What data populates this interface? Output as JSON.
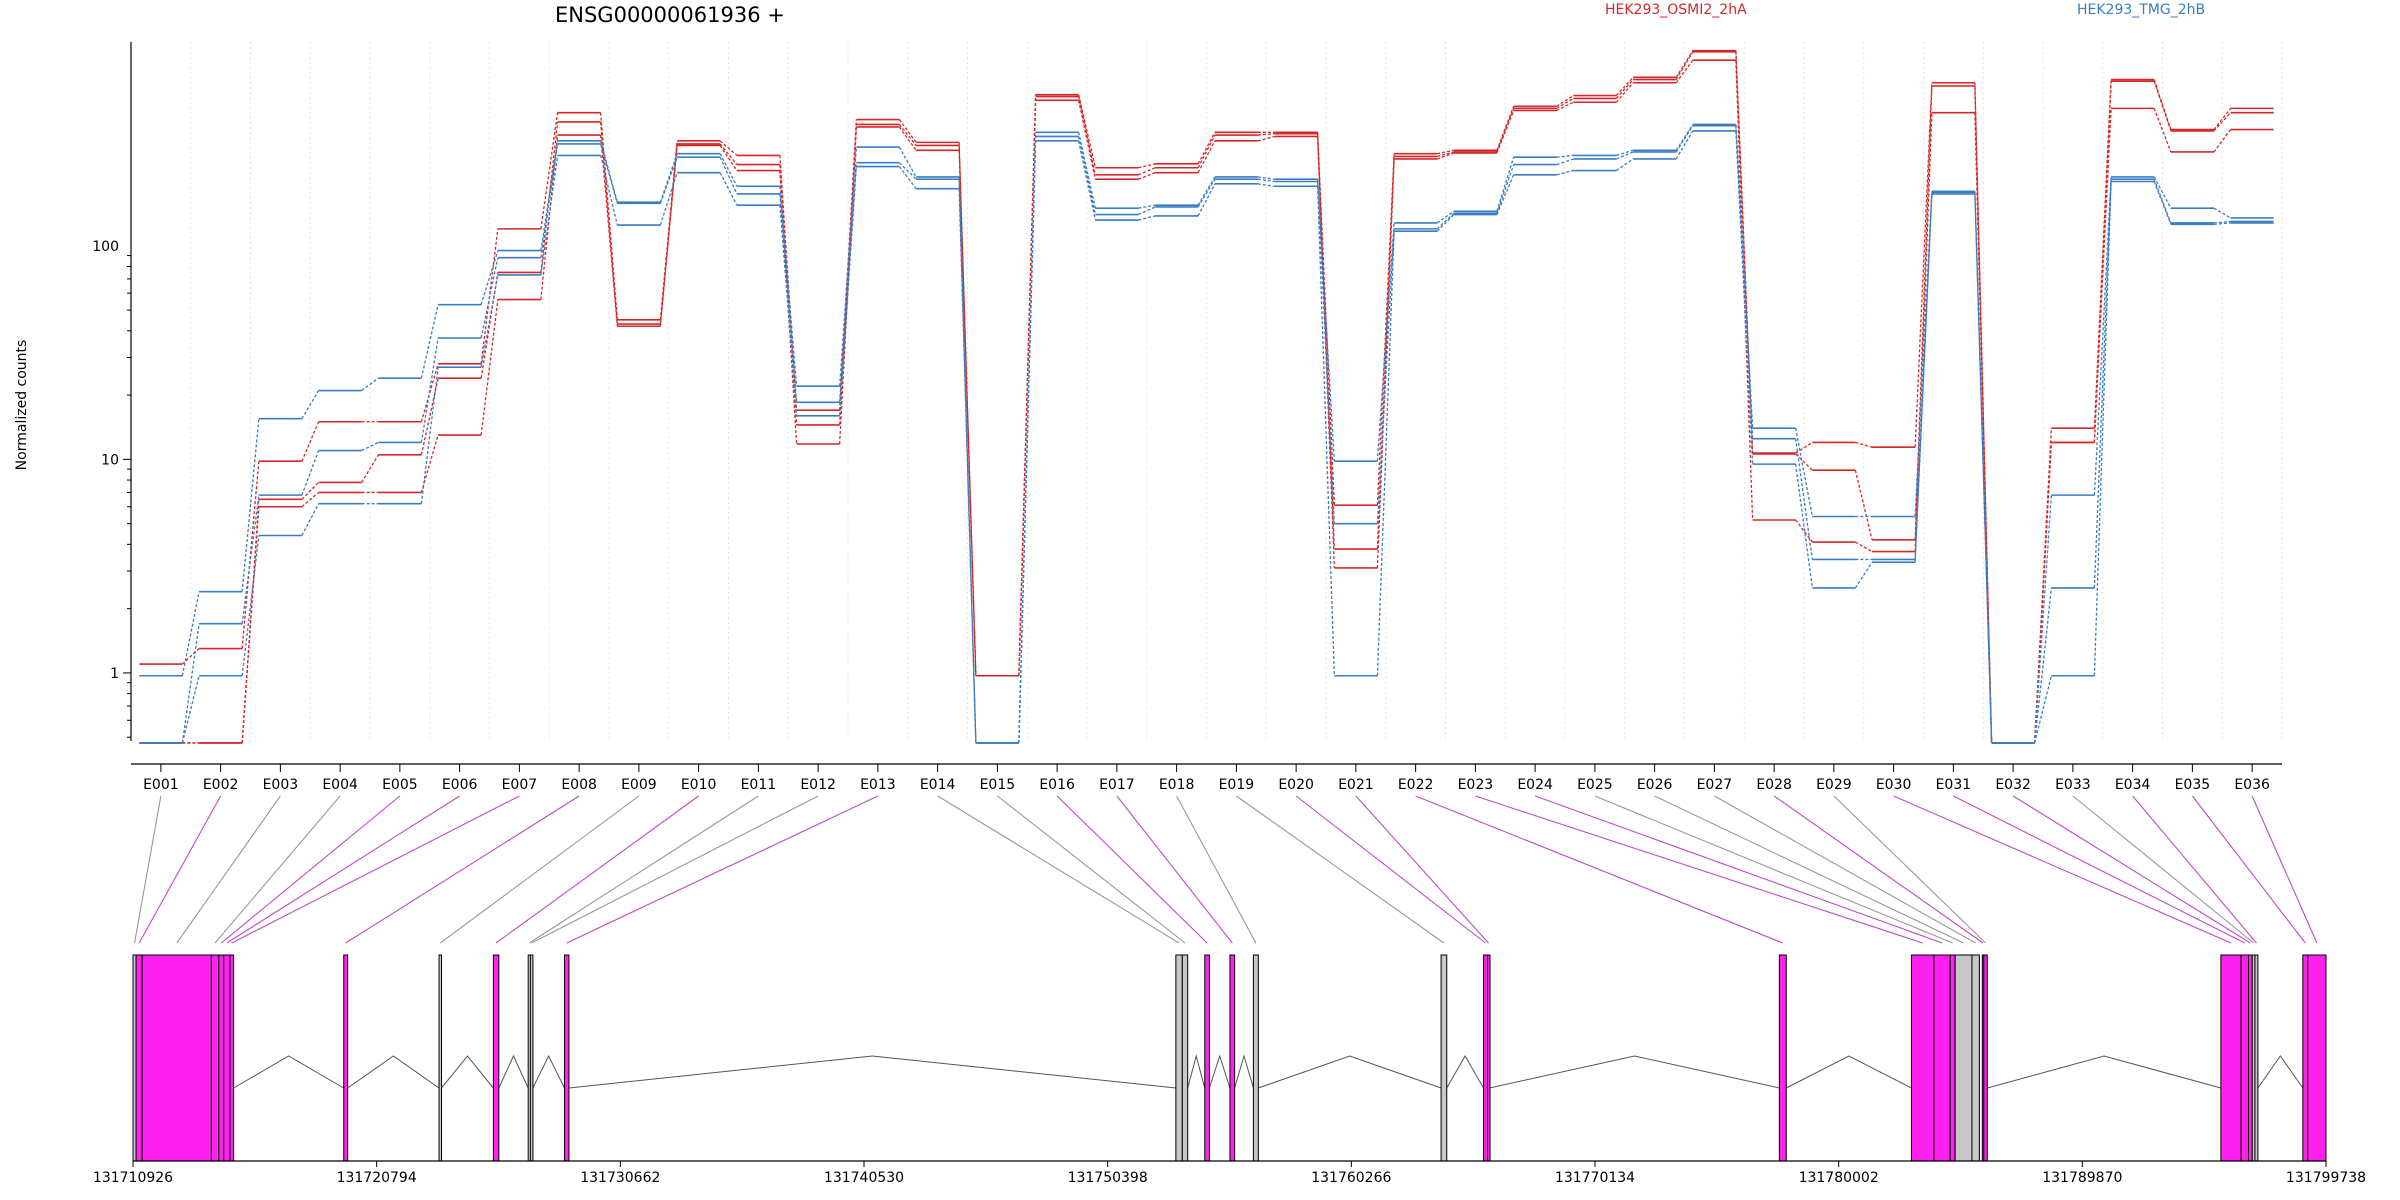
{
  "chart_data": {
    "type": "line",
    "title": "ENSG00000061936 +",
    "xlabel": "",
    "ylabel": "Normalized counts",
    "y_scale": "log",
    "y_ticks": [
      {
        "value": 1,
        "label": "1"
      },
      {
        "value": 10,
        "label": "10"
      },
      {
        "value": 100,
        "label": "100"
      }
    ],
    "ylim": [
      0.48,
      900
    ],
    "grid": "vertical dotted lines at exon boundaries",
    "legend": {
      "placement": "top-right",
      "entries": [
        {
          "label": "HEK293_OSMI2_2hA",
          "color": "#d62728"
        },
        {
          "label": "HEK293_TMG_2hB",
          "color": "#3a7dc0"
        }
      ]
    },
    "categories": [
      "E001",
      "E002",
      "E003",
      "E004",
      "E005",
      "E006",
      "E007",
      "E008",
      "E009",
      "E010",
      "E011",
      "E012",
      "E013",
      "E014",
      "E015",
      "E016",
      "E017",
      "E018",
      "E019",
      "E020",
      "E021",
      "E022",
      "E023",
      "E024",
      "E025",
      "E026",
      "E027",
      "E028",
      "E029",
      "E030",
      "E031",
      "E032",
      "E033",
      "E034",
      "E035",
      "E036"
    ],
    "series": [
      {
        "group": "HEK293_OSMI2_2hA",
        "color": "#d62728",
        "values": [
          1.1,
          1.3,
          9.8,
          15,
          15,
          28,
          120,
          420,
          45,
          310,
          265,
          17,
          390,
          305,
          0.97,
          510,
          232,
          242,
          340,
          340,
          6.1,
          270,
          280,
          450,
          505,
          615,
          820,
          10.7,
          12,
          11.4,
          580,
          0.47,
          14,
          600,
          350,
          440
        ]
      },
      {
        "group": "HEK293_OSMI2_2hA",
        "color": "#d62728",
        "values": [
          0.47,
          0.47,
          6.5,
          7.8,
          10.5,
          24,
          75,
          380,
          43,
          300,
          240,
          14.5,
          370,
          295,
          0.97,
          500,
          215,
          232,
          330,
          335,
          3.8,
          262,
          275,
          440,
          490,
          600,
          810,
          10.6,
          8.9,
          4.2,
          560,
          0.47,
          12,
          590,
          345,
          420
        ]
      },
      {
        "group": "HEK293_OSMI2_2hA",
        "color": "#d62728",
        "values": [
          0.47,
          0.47,
          6.0,
          7.0,
          7.0,
          13,
          56,
          330,
          42,
          295,
          225,
          11.8,
          360,
          280,
          0.97,
          480,
          205,
          220,
          310,
          325,
          3.1,
          255,
          272,
          430,
          470,
          580,
          740,
          5.2,
          4.1,
          3.7,
          420,
          0.47,
          12,
          440,
          275,
          350
        ]
      },
      {
        "group": "HEK293_TMG_2hB",
        "color": "#3a7dc0",
        "values": [
          0.97,
          2.4,
          15.5,
          21,
          24,
          53,
          95,
          310,
          160,
          270,
          190,
          22,
          290,
          210,
          0.47,
          340,
          150,
          155,
          210,
          205,
          9.8,
          128,
          145,
          260,
          265,
          280,
          370,
          14,
          5.4,
          5.4,
          180,
          0.47,
          6.8,
          210,
          150,
          135
        ]
      },
      {
        "group": "HEK293_TMG_2hB",
        "color": "#3a7dc0",
        "values": [
          0.47,
          1.7,
          6.8,
          11,
          12,
          37,
          88,
          300,
          158,
          260,
          175,
          18.5,
          245,
          205,
          0.47,
          325,
          140,
          152,
          205,
          200,
          5,
          120,
          142,
          240,
          255,
          275,
          365,
          12.5,
          3.4,
          3.4,
          178,
          0.47,
          2.5,
          205,
          128,
          130
        ]
      },
      {
        "group": "HEK293_TMG_2hB",
        "color": "#3a7dc0",
        "values": [
          0.47,
          0.97,
          4.4,
          6.2,
          6.2,
          27,
          73,
          265,
          125,
          220,
          155,
          16,
          235,
          185,
          0.47,
          310,
          132,
          138,
          195,
          190,
          0.97,
          117,
          140,
          215,
          225,
          255,
          345,
          9.5,
          2.5,
          3.3,
          175,
          0.47,
          0.97,
          200,
          126,
          128
        ]
      }
    ],
    "gene_model": {
      "coordinate_ticks": [
        "131710926",
        "131720794",
        "131730662",
        "131740530",
        "131750398",
        "131760266",
        "131770134",
        "131780002",
        "131789870",
        "131799738"
      ],
      "genomic_range": [
        131710926,
        131799738
      ],
      "exons": [
        {
          "start": 131710926,
          "end": 131711050,
          "color": "#c8c8c8",
          "link_color": "#999999"
        },
        {
          "start": 131711050,
          "end": 131711300,
          "color": "#ff22ee",
          "link_color": "#c04ac8"
        },
        {
          "start": 131711300,
          "end": 131714100,
          "color": "#ff22ee",
          "link_color": "#999999"
        },
        {
          "start": 131714100,
          "end": 131714400,
          "color": "#ff22ee",
          "link_color": "#999999"
        },
        {
          "start": 131714400,
          "end": 131714600,
          "color": "#ff22ee",
          "link_color": "#c04ac8"
        },
        {
          "start": 131714600,
          "end": 131714850,
          "color": "#ff22ee",
          "link_color": "#c04ac8"
        },
        {
          "start": 131714850,
          "end": 131715000,
          "color": "#ff22ee",
          "link_color": "#c04ac8"
        },
        {
          "start": 131719460,
          "end": 131719620,
          "color": "#ff22ee",
          "link_color": "#c04ac8"
        },
        {
          "start": 131723320,
          "end": 131723420,
          "color": "#c8c8c8",
          "link_color": "#999999"
        },
        {
          "start": 131725520,
          "end": 131725740,
          "color": "#ff22ee",
          "link_color": "#c04ac8"
        },
        {
          "start": 131726930,
          "end": 131727020,
          "color": "#c8c8c8",
          "link_color": "#999999"
        },
        {
          "start": 131727020,
          "end": 131727120,
          "color": "#c8c8c8",
          "link_color": "#999999"
        },
        {
          "start": 131728400,
          "end": 131728580,
          "color": "#ff22ee",
          "link_color": "#c04ac8"
        },
        {
          "start": 131753160,
          "end": 131753420,
          "color": "#c8c8c8",
          "link_color": "#999999"
        },
        {
          "start": 131753420,
          "end": 131753640,
          "color": "#c8c8c8",
          "link_color": "#999999"
        },
        {
          "start": 131754330,
          "end": 131754520,
          "color": "#ff22ee",
          "link_color": "#c04ac8"
        },
        {
          "start": 131755350,
          "end": 131755540,
          "color": "#ff22ee",
          "link_color": "#c04ac8"
        },
        {
          "start": 131756300,
          "end": 131756500,
          "color": "#c8c8c8",
          "link_color": "#999999"
        },
        {
          "start": 131763900,
          "end": 131764130,
          "color": "#c8c8c8",
          "link_color": "#999999"
        },
        {
          "start": 131765620,
          "end": 131765780,
          "color": "#ff22ee",
          "link_color": "#c04ac8"
        },
        {
          "start": 131765780,
          "end": 131765860,
          "color": "#ff22ee",
          "link_color": "#c04ac8"
        },
        {
          "start": 131777600,
          "end": 131777880,
          "color": "#ff22ee",
          "link_color": "#c04ac8"
        },
        {
          "start": 131782950,
          "end": 131783860,
          "color": "#ff22ee",
          "link_color": "#c04ac8"
        },
        {
          "start": 131783860,
          "end": 131784520,
          "color": "#ff22ee",
          "link_color": "#c04ac8"
        },
        {
          "start": 131784520,
          "end": 131784720,
          "color": "#ff22ee",
          "link_color": "#999999"
        },
        {
          "start": 131784720,
          "end": 131785400,
          "color": "#c8c8c8",
          "link_color": "#999999"
        },
        {
          "start": 131785400,
          "end": 131785700,
          "color": "#c8c8c8",
          "link_color": "#999999"
        },
        {
          "start": 131785820,
          "end": 131785880,
          "color": "#ff22ee",
          "link_color": "#c04ac8"
        },
        {
          "start": 131785880,
          "end": 131786020,
          "color": "#ff22ee",
          "link_color": "#999999"
        },
        {
          "start": 131795480,
          "end": 131796300,
          "color": "#ff22ee",
          "link_color": "#c04ac8"
        },
        {
          "start": 131796300,
          "end": 131796600,
          "color": "#ff22ee",
          "link_color": "#c04ac8"
        },
        {
          "start": 131796600,
          "end": 131796750,
          "color": "#ff22ee",
          "link_color": "#c04ac8"
        },
        {
          "start": 131796750,
          "end": 131796860,
          "color": "#c8c8c8",
          "link_color": "#999999"
        },
        {
          "start": 131796860,
          "end": 131796980,
          "color": "#c8c8c8",
          "link_color": "#c04ac8"
        },
        {
          "start": 131798800,
          "end": 131799000,
          "color": "#ff22ee",
          "link_color": "#c04ac8"
        },
        {
          "start": 131799000,
          "end": 131799738,
          "color": "#ff22ee",
          "link_color": "#c04ac8"
        }
      ]
    }
  }
}
